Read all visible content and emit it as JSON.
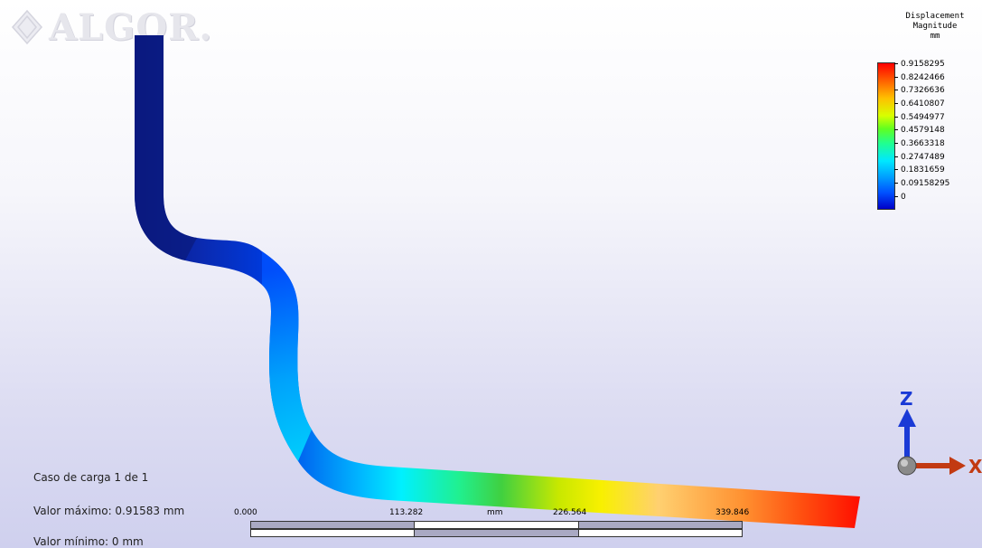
{
  "app": {
    "logo_text": "ALGOR."
  },
  "legend": {
    "title_line1": "Displacement",
    "title_line2": "Magnitude",
    "unit": "mm",
    "values": [
      "0.9158295",
      "0.8242466",
      "0.7326636",
      "0.6410807",
      "0.5494977",
      "0.4579148",
      "0.3663318",
      "0.2747489",
      "0.1831659",
      "0.09158295",
      "0"
    ],
    "color_max": "#ff0000",
    "color_min": "#0000c8"
  },
  "info": {
    "load_case": "Caso de carga  1 de 1",
    "max_value": "Valor máximo: 0.91583 mm",
    "min_value": "Valor mínimo: 0 mm"
  },
  "scale_bar": {
    "labels": [
      "0.000",
      "113.282",
      "mm",
      "226.564",
      "339.846"
    ]
  },
  "triad": {
    "z_label": "Z",
    "x_label": "X",
    "z_color": "#1a3ad6",
    "x_color": "#c23a12"
  },
  "model": {
    "icon": "pipe-model",
    "result": "displacement-contour"
  }
}
